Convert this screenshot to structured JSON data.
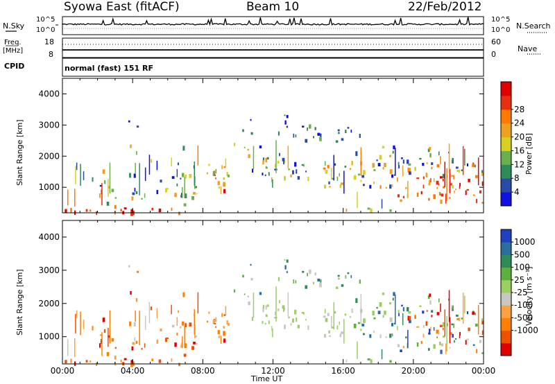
{
  "header": {
    "station": "Syowa East (fitACF)",
    "beam": "Beam 10",
    "date": "22/Feb/2012"
  },
  "top_panels": {
    "nsky_label": "N.Sky",
    "nsky_ticks": [
      "10^5",
      "10^0"
    ],
    "nsearch_label": "N.Search",
    "nsearch_ticks": [
      "10^5",
      "10^0"
    ],
    "freq_label": "Freq.",
    "freq_unit": "[MHz]",
    "freq_ticks": [
      "18",
      "8"
    ],
    "nave_label": "Nave",
    "nave_ticks": [
      "60",
      "0"
    ],
    "cpid_label": "CPID",
    "cpid_text": "normal (fast) 151 RF"
  },
  "chart_data": [
    {
      "type": "heatmap",
      "name": "power",
      "ylabel": "Slant Range [km]",
      "ylim": [
        180,
        4500
      ],
      "yticks": [
        1000,
        2000,
        3000,
        4000
      ],
      "xlim": [
        0,
        24
      ],
      "colorbar": {
        "label": "Power [dB]",
        "ticks": [
          "4",
          "8",
          "12",
          "16",
          "20",
          "24",
          "28"
        ],
        "colors": [
          "#1010e0",
          "#2a4aa8",
          "#2e8b57",
          "#6ab04c",
          "#d8d020",
          "#f0a020",
          "#ff7a00",
          "#e83010",
          "#e00000"
        ]
      }
    },
    {
      "type": "heatmap",
      "name": "velocity",
      "ylabel": "Slant Range [km]",
      "ylim": [
        180,
        4500
      ],
      "yticks": [
        1000,
        2000,
        3000,
        4000
      ],
      "xlim": [
        0,
        24
      ],
      "xlabel": "Time UT",
      "xticks": [
        "00:00",
        "04:00",
        "08:00",
        "12:00",
        "16:00",
        "20:00",
        "00:00"
      ],
      "colorbar": {
        "label": "Velocity [m s⁻¹]",
        "ticks": [
          "1000",
          "500",
          "100",
          "25",
          "-25",
          "-100",
          "-500",
          "-1000"
        ],
        "colors": [
          "#2040c0",
          "#2a6ea0",
          "#2e8b57",
          "#5cb03c",
          "#9ad060",
          "#c8c8c0",
          "#ffa040",
          "#ff8000",
          "#f05000",
          "#e00000"
        ]
      }
    }
  ]
}
